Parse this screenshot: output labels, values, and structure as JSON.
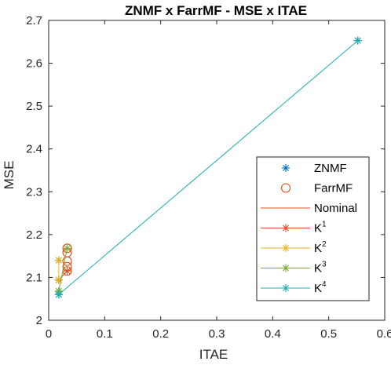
{
  "chart_data": {
    "type": "scatter",
    "title": "ZNMF x FarrMF - MSE  x ITAE",
    "xlabel": "ITAE",
    "ylabel": "MSE",
    "xlim": [
      0,
      0.6
    ],
    "ylim": [
      2,
      2.7
    ],
    "xticks": [
      0,
      0.1,
      0.2,
      0.3,
      0.4,
      0.5,
      0.6
    ],
    "xtick_labels": [
      "0",
      "0.1",
      "0.2",
      "0.3",
      "0.4",
      "0.5",
      "0.6"
    ],
    "yticks": [
      2,
      2.1,
      2.2,
      2.3,
      2.4,
      2.5,
      2.6,
      2.7
    ],
    "ytick_labels": [
      "2",
      "2.1",
      "2.2",
      "2.3",
      "2.4",
      "2.5",
      "2.6",
      "2.7"
    ],
    "grid": false,
    "legend_position": "right",
    "series": [
      {
        "name": "ZNMF",
        "marker": "asterisk",
        "line": false,
        "color": "#0072BD",
        "points": [
          [
            0.552,
            2.653
          ],
          [
            0.018,
            2.094
          ],
          [
            0.018,
            2.14
          ],
          [
            0.018,
            2.068
          ],
          [
            0.018,
            2.06
          ]
        ]
      },
      {
        "name": "FarrMF",
        "marker": "circle",
        "line": false,
        "color": "#D95319",
        "points": [
          [
            0.033,
            2.115
          ],
          [
            0.033,
            2.158
          ],
          [
            0.033,
            2.168
          ],
          [
            0.033,
            2.138
          ],
          [
            0.033,
            2.125
          ]
        ]
      },
      {
        "name": "Nominal",
        "marker": "none",
        "line": true,
        "color": "#D95319",
        "points": [
          [
            0.018,
            2.094
          ],
          [
            0.033,
            2.115
          ]
        ]
      },
      {
        "name": "K",
        "name_sup": "1",
        "marker": "asterisk",
        "line": true,
        "color": "#D95319",
        "points": [
          [
            0.018,
            2.094
          ],
          [
            0.033,
            2.115
          ]
        ]
      },
      {
        "name": "K",
        "name_sup": "2",
        "marker": "asterisk",
        "line": true,
        "color": "#EDB120",
        "points": [
          [
            0.018,
            2.14
          ],
          [
            0.018,
            2.094
          ]
        ]
      },
      {
        "name": "K",
        "name_sup": "3",
        "marker": "asterisk",
        "line": true,
        "color": "#77AC30",
        "points": [
          [
            0.018,
            2.068
          ],
          [
            0.033,
            2.168
          ]
        ]
      },
      {
        "name": "K",
        "name_sup": "4",
        "marker": "asterisk",
        "line": true,
        "color": "#1AB0AF",
        "points": [
          [
            0.018,
            2.06
          ],
          [
            0.552,
            2.653
          ]
        ]
      }
    ]
  },
  "legend_marker_colors": {
    "ZNMF": "#0072BD",
    "FarrMF": "#D95319",
    "Nominal": "#D95319",
    "K1": "#D95319",
    "K2": "#EDB120",
    "K3": "#77AC30",
    "K4": "#1AB0AF"
  }
}
